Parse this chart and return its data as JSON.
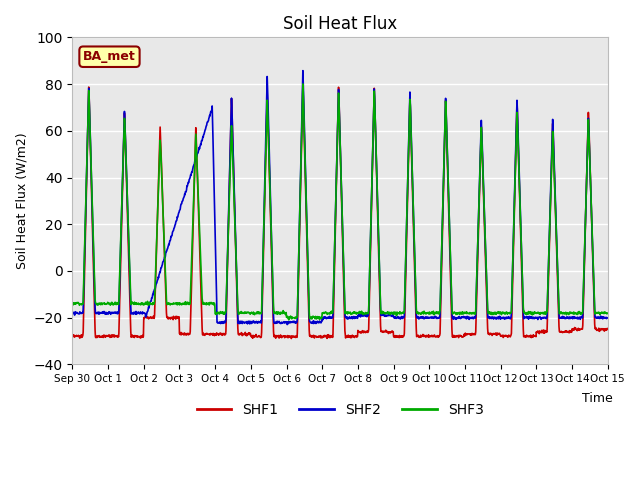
{
  "title": "Soil Heat Flux",
  "ylabel": "Soil Heat Flux (W/m2)",
  "xlabel": "Time",
  "ylim": [
    -40,
    100
  ],
  "yticks": [
    -40,
    -20,
    0,
    20,
    40,
    60,
    80,
    100
  ],
  "xtick_labels": [
    "Sep 30",
    "Oct 1",
    "Oct 2",
    "Oct 3",
    "Oct 4",
    "Oct 5",
    "Oct 6",
    "Oct 7",
    "Oct 8",
    "Oct 9",
    "Oct 10",
    "Oct 11",
    "Oct 12",
    "Oct 13",
    "Oct 14",
    "Oct 15"
  ],
  "line_colors": {
    "SHF1": "#cc0000",
    "SHF2": "#0000cc",
    "SHF3": "#00aa00"
  },
  "line_width": 1.2,
  "bg_color": "#e8e8e8",
  "fig_color": "#ffffff",
  "annotation_text": "BA_met",
  "annotation_bg": "#ffffaa",
  "annotation_border": "#8b0000",
  "legend_colors": [
    "#cc0000",
    "#0000cc",
    "#00aa00"
  ],
  "legend_labels": [
    "SHF1",
    "SHF2",
    "SHF3"
  ],
  "shf1_peaks": [
    80,
    69,
    62,
    62,
    75,
    77,
    80,
    80,
    79,
    75,
    74,
    63,
    73,
    64,
    69
  ],
  "shf2_peaks": [
    79,
    69,
    60,
    70,
    75,
    84,
    86,
    79,
    79,
    77,
    75,
    65,
    74,
    66,
    66
  ],
  "shf3_peaks": [
    78,
    67,
    57,
    59,
    63,
    74,
    81,
    77,
    78,
    75,
    74,
    62,
    69,
    60,
    65
  ],
  "shf1_night": [
    -28,
    -28,
    -20,
    -27,
    -27,
    -28,
    -28,
    -28,
    -26,
    -28,
    -28,
    -27,
    -28,
    -26,
    -25
  ],
  "shf2_night": [
    -18,
    -18,
    -18,
    -18,
    -22,
    -22,
    -22,
    -20,
    -19,
    -20,
    -20,
    -20,
    -20,
    -20,
    -20
  ],
  "shf3_night": [
    -14,
    -14,
    -14,
    -14,
    -18,
    -18,
    -20,
    -18,
    -18,
    -18,
    -18,
    -18,
    -18,
    -18,
    -18
  ],
  "shf2_delayed_day": 3,
  "n_days": 15,
  "pts_per_day": 96
}
